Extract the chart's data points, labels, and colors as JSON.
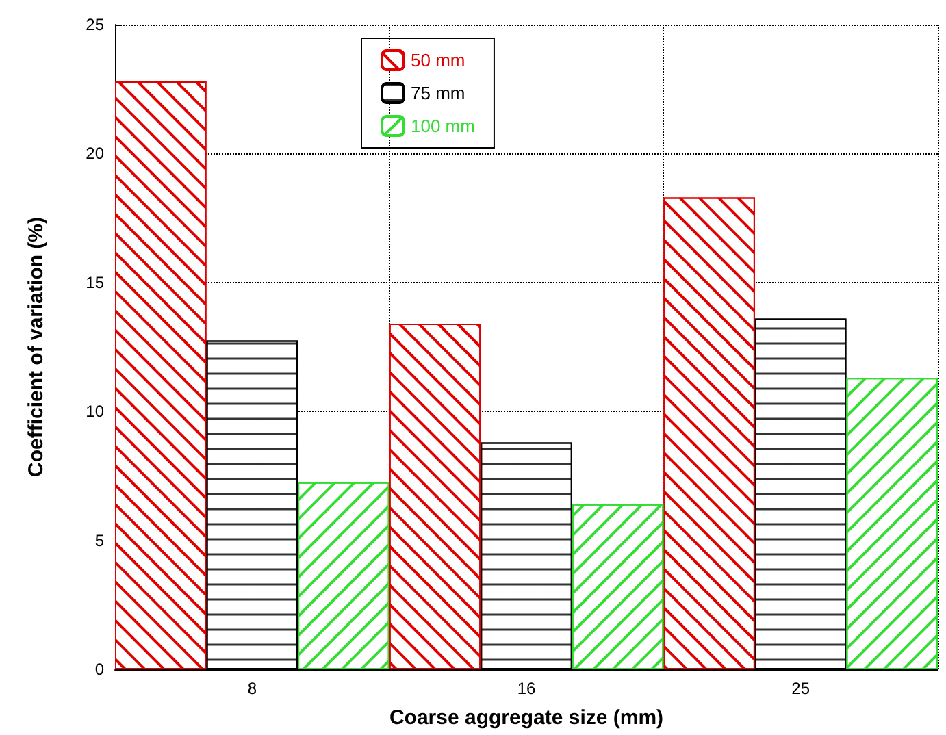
{
  "chart_data": {
    "type": "bar",
    "xlabel": "Coarse aggregate size (mm)",
    "ylabel": "Coefficient of variation (%)",
    "categories": [
      "8",
      "16",
      "25"
    ],
    "series": [
      {
        "name": "50 mm",
        "color": "#e00000",
        "values": [
          22.8,
          13.4,
          18.3
        ]
      },
      {
        "name": "75 mm",
        "color": "#000000",
        "values": [
          12.75,
          8.8,
          13.6
        ]
      },
      {
        "name": "100 mm",
        "color": "#33dd33",
        "values": [
          7.25,
          6.4,
          11.3
        ]
      }
    ],
    "ylim": [
      0,
      25
    ],
    "yticks": [
      0,
      5,
      10,
      15,
      20,
      25
    ],
    "grid": true,
    "legend": "top"
  }
}
